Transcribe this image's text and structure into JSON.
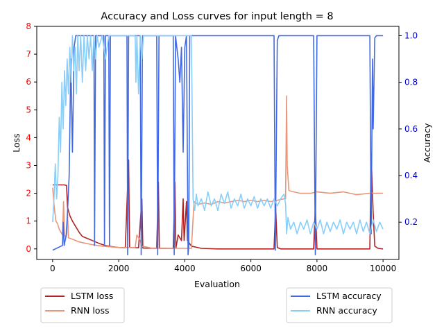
{
  "chart_data": {
    "type": "line",
    "title": "Accuracy and Loss curves for input length = 8",
    "xlabel": "Evaluation",
    "ylabel_left": "Loss",
    "ylabel_right": "Accuracy",
    "xlim": [
      -480,
      10480
    ],
    "ylim_left": [
      -0.38,
      8.0
    ],
    "ylim_right": [
      0.04,
      1.04
    ],
    "x_ticks": [
      0,
      2000,
      4000,
      6000,
      8000,
      10000
    ],
    "y_left_ticks": [
      0,
      1,
      2,
      3,
      4,
      5,
      6,
      7,
      8
    ],
    "y_right_ticks": [
      0.2,
      0.4,
      0.6,
      0.8,
      1.0
    ],
    "colors": {
      "lstm_loss": "#b22222",
      "rnn_loss": "#e9967a",
      "lstm_acc": "#4169e1",
      "rnn_acc": "#87cefa",
      "left_tick": "#ff0000",
      "right_tick": "#0000cd"
    },
    "legend_left": {
      "items": [
        "LSTM loss",
        "RNN loss"
      ],
      "placement": "lower-left outside"
    },
    "legend_right": {
      "items": [
        "LSTM accuracy",
        "RNN accuracy"
      ],
      "placement": "lower-right outside"
    },
    "series": [
      {
        "name": "LSTM loss",
        "axis": "left",
        "points": [
          [
            0,
            2.3
          ],
          [
            350,
            2.3
          ],
          [
            420,
            2.28
          ],
          [
            450,
            1.5
          ],
          [
            520,
            1.2
          ],
          [
            600,
            1.0
          ],
          [
            700,
            0.8
          ],
          [
            800,
            0.6
          ],
          [
            900,
            0.45
          ],
          [
            1000,
            0.4
          ],
          [
            1200,
            0.3
          ],
          [
            1400,
            0.2
          ],
          [
            1600,
            0.12
          ],
          [
            1800,
            0.08
          ],
          [
            2000,
            0.05
          ],
          [
            2200,
            0.04
          ],
          [
            2300,
            3.2
          ],
          [
            2330,
            0.05
          ],
          [
            2600,
            0.04
          ],
          [
            2700,
            1.8
          ],
          [
            2730,
            0.03
          ],
          [
            3150,
            0.02
          ],
          [
            3200,
            2.4
          ],
          [
            3230,
            0.02
          ],
          [
            3650,
            0.02
          ],
          [
            3700,
            2.4
          ],
          [
            3730,
            0.02
          ],
          [
            3800,
            0.5
          ],
          [
            3900,
            0.3
          ],
          [
            3950,
            1.8
          ],
          [
            3980,
            0.3
          ],
          [
            4050,
            1.7
          ],
          [
            4080,
            0.3
          ],
          [
            4200,
            0.1
          ],
          [
            4500,
            0.02
          ],
          [
            5000,
            0.0
          ],
          [
            6000,
            0.0
          ],
          [
            6700,
            0.0
          ],
          [
            6750,
            1.5
          ],
          [
            6800,
            0.05
          ],
          [
            6900,
            0.0
          ],
          [
            7900,
            0.0
          ],
          [
            7950,
            1.5
          ],
          [
            8000,
            0.0
          ],
          [
            9600,
            0.0
          ],
          [
            9640,
            3.4
          ],
          [
            9700,
            1.3
          ],
          [
            9750,
            0.1
          ],
          [
            9850,
            0.02
          ],
          [
            10000,
            0.0
          ]
        ]
      },
      {
        "name": "RNN loss",
        "axis": "left",
        "points": [
          [
            0,
            2.2
          ],
          [
            50,
            1.5
          ],
          [
            100,
            1.0
          ],
          [
            150,
            0.9
          ],
          [
            200,
            0.7
          ],
          [
            250,
            0.6
          ],
          [
            300,
            0.5
          ],
          [
            330,
            1.7
          ],
          [
            360,
            0.5
          ],
          [
            400,
            0.4
          ],
          [
            450,
            1.3
          ],
          [
            480,
            0.4
          ],
          [
            600,
            0.35
          ],
          [
            700,
            0.3
          ],
          [
            800,
            0.25
          ],
          [
            1000,
            0.2
          ],
          [
            1200,
            0.15
          ],
          [
            1500,
            0.1
          ],
          [
            2000,
            0.05
          ],
          [
            2500,
            0.05
          ],
          [
            2550,
            0.5
          ],
          [
            2650,
            0.3
          ],
          [
            2700,
            0.1
          ],
          [
            3000,
            0.03
          ],
          [
            4200,
            0.02
          ],
          [
            4280,
            1.7
          ],
          [
            4400,
            1.6
          ],
          [
            4600,
            1.65
          ],
          [
            4800,
            1.6
          ],
          [
            5000,
            1.7
          ],
          [
            5200,
            1.65
          ],
          [
            5400,
            1.7
          ],
          [
            5600,
            1.75
          ],
          [
            5800,
            1.7
          ],
          [
            6000,
            1.75
          ],
          [
            6200,
            1.7
          ],
          [
            6400,
            1.75
          ],
          [
            6600,
            1.7
          ],
          [
            6800,
            1.75
          ],
          [
            7000,
            1.8
          ],
          [
            7050,
            1.8
          ],
          [
            7080,
            5.5
          ],
          [
            7100,
            3.0
          ],
          [
            7150,
            2.1
          ],
          [
            7300,
            2.05
          ],
          [
            7500,
            2.0
          ],
          [
            7800,
            2.0
          ],
          [
            8000,
            2.05
          ],
          [
            8400,
            2.0
          ],
          [
            8800,
            2.05
          ],
          [
            9200,
            1.95
          ],
          [
            9600,
            2.0
          ],
          [
            10000,
            2.0
          ]
        ]
      },
      {
        "name": "LSTM accuracy",
        "axis": "right",
        "points": [
          [
            0,
            0.08
          ],
          [
            300,
            0.1
          ],
          [
            320,
            0.2
          ],
          [
            350,
            0.1
          ],
          [
            420,
            0.15
          ],
          [
            500,
            0.4
          ],
          [
            550,
            0.9
          ],
          [
            600,
            0.5
          ],
          [
            650,
            0.95
          ],
          [
            700,
            1.0
          ],
          [
            1000,
            1.0
          ],
          [
            1250,
            1.0
          ],
          [
            1270,
            0.1
          ],
          [
            1300,
            1.0
          ],
          [
            1550,
            1.0
          ],
          [
            1570,
            0.1
          ],
          [
            1600,
            1.0
          ],
          [
            1700,
            1.0
          ],
          [
            1720,
            0.1
          ],
          [
            1750,
            1.0
          ],
          [
            2000,
            1.0
          ],
          [
            2250,
            1.0
          ],
          [
            2270,
            0.06
          ],
          [
            2300,
            1.0
          ],
          [
            2650,
            1.0
          ],
          [
            2680,
            0.06
          ],
          [
            2720,
            1.0
          ],
          [
            3150,
            1.0
          ],
          [
            3180,
            0.06
          ],
          [
            3220,
            1.0
          ],
          [
            3650,
            1.0
          ],
          [
            3680,
            0.06
          ],
          [
            3720,
            1.0
          ],
          [
            3800,
            0.9
          ],
          [
            3850,
            0.8
          ],
          [
            3900,
            0.95
          ],
          [
            3950,
            0.5
          ],
          [
            4000,
            0.95
          ],
          [
            4050,
            1.0
          ],
          [
            4100,
            0.06
          ],
          [
            4120,
            0.1
          ],
          [
            4150,
            1.0
          ],
          [
            4300,
            1.0
          ],
          [
            6700,
            1.0
          ],
          [
            6740,
            0.08
          ],
          [
            6800,
            0.98
          ],
          [
            6850,
            1.0
          ],
          [
            7900,
            1.0
          ],
          [
            7950,
            0.06
          ],
          [
            8000,
            1.0
          ],
          [
            9600,
            1.0
          ],
          [
            9640,
            0.15
          ],
          [
            9680,
            0.9
          ],
          [
            9700,
            0.6
          ],
          [
            9750,
            0.99
          ],
          [
            9800,
            1.0
          ],
          [
            10000,
            1.0
          ]
        ]
      },
      {
        "name": "RNN accuracy",
        "axis": "right",
        "points": [
          [
            0,
            0.2
          ],
          [
            40,
            0.3
          ],
          [
            80,
            0.45
          ],
          [
            120,
            0.3
          ],
          [
            160,
            0.4
          ],
          [
            200,
            0.65
          ],
          [
            240,
            0.5
          ],
          [
            280,
            0.8
          ],
          [
            320,
            0.6
          ],
          [
            360,
            0.85
          ],
          [
            400,
            0.7
          ],
          [
            440,
            0.9
          ],
          [
            480,
            0.75
          ],
          [
            520,
            0.95
          ],
          [
            560,
            0.8
          ],
          [
            600,
            1.0
          ],
          [
            640,
            0.85
          ],
          [
            680,
            0.95
          ],
          [
            720,
            0.75
          ],
          [
            760,
            1.0
          ],
          [
            800,
            0.85
          ],
          [
            850,
            1.0
          ],
          [
            900,
            0.8
          ],
          [
            950,
            1.0
          ],
          [
            1000,
            0.85
          ],
          [
            1050,
            1.0
          ],
          [
            1100,
            0.9
          ],
          [
            1150,
            1.0
          ],
          [
            1200,
            0.85
          ],
          [
            1250,
            1.0
          ],
          [
            1300,
            0.9
          ],
          [
            1350,
            1.0
          ],
          [
            1400,
            0.95
          ],
          [
            1500,
            1.0
          ],
          [
            1600,
            0.9
          ],
          [
            1700,
            1.0
          ],
          [
            2500,
            1.0
          ],
          [
            2520,
            0.8
          ],
          [
            2550,
            1.0
          ],
          [
            2600,
            0.75
          ],
          [
            2650,
            1.0
          ],
          [
            2700,
            0.9
          ],
          [
            2750,
            1.0
          ],
          [
            4200,
            1.0
          ],
          [
            4250,
            0.3
          ],
          [
            4300,
            0.25
          ],
          [
            4350,
            0.32
          ],
          [
            4400,
            0.27
          ],
          [
            4500,
            0.3
          ],
          [
            4600,
            0.25
          ],
          [
            4700,
            0.33
          ],
          [
            4800,
            0.27
          ],
          [
            4900,
            0.3
          ],
          [
            5000,
            0.25
          ],
          [
            5100,
            0.32
          ],
          [
            5200,
            0.28
          ],
          [
            5300,
            0.33
          ],
          [
            5400,
            0.26
          ],
          [
            5500,
            0.3
          ],
          [
            5600,
            0.27
          ],
          [
            5700,
            0.32
          ],
          [
            5800,
            0.26
          ],
          [
            5900,
            0.3
          ],
          [
            6000,
            0.27
          ],
          [
            6100,
            0.31
          ],
          [
            6200,
            0.26
          ],
          [
            6300,
            0.3
          ],
          [
            6400,
            0.27
          ],
          [
            6500,
            0.3
          ],
          [
            6600,
            0.26
          ],
          [
            6700,
            0.3
          ],
          [
            6800,
            0.27
          ],
          [
            6900,
            0.3
          ],
          [
            7000,
            0.32
          ],
          [
            7050,
            0.28
          ],
          [
            7080,
            0.15
          ],
          [
            7120,
            0.22
          ],
          [
            7200,
            0.17
          ],
          [
            7300,
            0.2
          ],
          [
            7400,
            0.15
          ],
          [
            7500,
            0.2
          ],
          [
            7600,
            0.17
          ],
          [
            7700,
            0.21
          ],
          [
            7800,
            0.15
          ],
          [
            7900,
            0.2
          ],
          [
            8000,
            0.17
          ],
          [
            8100,
            0.21
          ],
          [
            8200,
            0.15
          ],
          [
            8300,
            0.2
          ],
          [
            8400,
            0.16
          ],
          [
            8500,
            0.2
          ],
          [
            8600,
            0.17
          ],
          [
            8700,
            0.21
          ],
          [
            8800,
            0.15
          ],
          [
            8900,
            0.2
          ],
          [
            9000,
            0.17
          ],
          [
            9100,
            0.2
          ],
          [
            9200,
            0.15
          ],
          [
            9300,
            0.21
          ],
          [
            9400,
            0.16
          ],
          [
            9500,
            0.2
          ],
          [
            9600,
            0.15
          ],
          [
            9700,
            0.21
          ],
          [
            9800,
            0.16
          ],
          [
            9900,
            0.2
          ],
          [
            10000,
            0.17
          ]
        ]
      }
    ]
  }
}
